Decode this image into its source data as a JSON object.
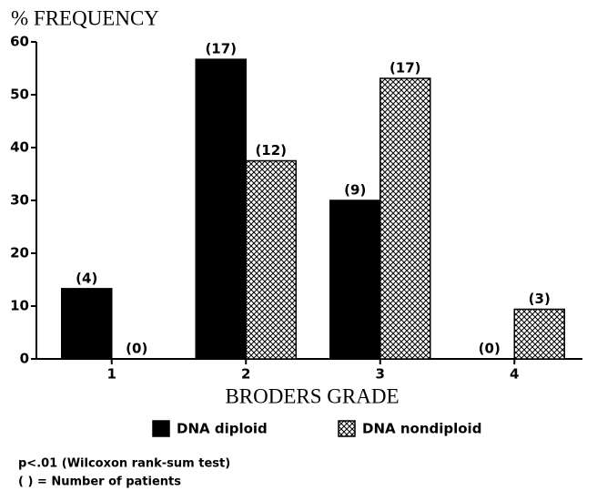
{
  "chart_data": {
    "type": "bar",
    "title": "% FREQUENCY",
    "x_label": "BRODERS GRADE",
    "categories": [
      "1",
      "2",
      "3",
      "4"
    ],
    "series": [
      {
        "name": "DNA diploid",
        "color": "#000000",
        "values": [
          13.3,
          56.7,
          30,
          0
        ],
        "labels": [
          "(4)",
          "(17)",
          "(9)",
          "(0)"
        ]
      },
      {
        "name": "DNA nondiploid",
        "color": "#000000",
        "pattern": "crosshatch",
        "values": [
          0,
          37.5,
          53.1,
          9.4
        ],
        "labels": [
          "(0)",
          "(12)",
          "(17)",
          "(3)"
        ]
      }
    ],
    "ylim": [
      0,
      60
    ],
    "yticks": [
      0,
      10,
      20,
      30,
      40,
      50,
      60
    ],
    "grid": false,
    "notes": [
      "p<.01 (Wilcoxon rank-sum test)",
      "( ) = Number of patients"
    ]
  }
}
